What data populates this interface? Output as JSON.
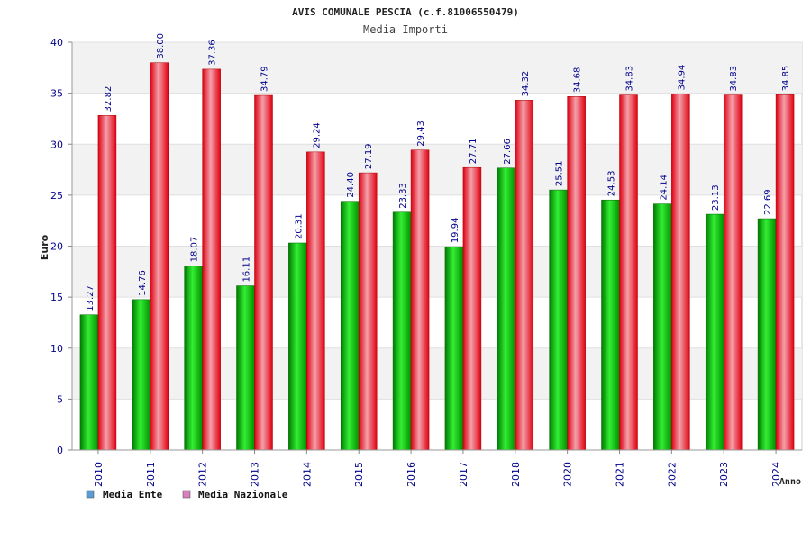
{
  "chart_data": {
    "type": "bar",
    "title": "AVIS COMUNALE PESCIA (c.f.81006550479)",
    "subtitle": "Media Importi",
    "xlabel": "Anno",
    "ylabel": "Euro",
    "ylim": [
      0,
      40
    ],
    "yticks": [
      "0",
      "5",
      "10",
      "15",
      "20",
      "25",
      "30",
      "35",
      "40"
    ],
    "categories": [
      "2010",
      "2011",
      "2012",
      "2013",
      "2014",
      "2015",
      "2016",
      "2017",
      "2018",
      "2020",
      "2021",
      "2022",
      "2023",
      "2024"
    ],
    "series": [
      {
        "name": "Media Ente",
        "color": "#00c000",
        "legend_color": "#5b9bd5",
        "values": [
          13.27,
          14.76,
          18.07,
          16.11,
          20.31,
          24.4,
          23.33,
          19.94,
          27.66,
          25.51,
          24.53,
          24.14,
          23.13,
          22.69
        ],
        "labels": [
          "13.27",
          "14.76",
          "18.07",
          "16.11",
          "20.31",
          "24.40",
          "23.33",
          "19.94",
          "27.66",
          "25.51",
          "24.53",
          "24.14",
          "23.13",
          "22.69"
        ]
      },
      {
        "name": "Media Nazionale",
        "color": "#ee1122",
        "legend_color": "#d77fbf",
        "values": [
          32.82,
          38.0,
          37.36,
          34.79,
          29.24,
          27.19,
          29.43,
          27.71,
          34.32,
          34.68,
          34.83,
          34.94,
          34.83,
          34.85
        ],
        "labels": [
          "32.82",
          "38.00",
          "37.36",
          "34.79",
          "29.24",
          "27.19",
          "29.43",
          "27.71",
          "34.32",
          "34.68",
          "34.83",
          "34.94",
          "34.83",
          "34.85"
        ]
      }
    ],
    "grid": true,
    "legend_position": "bottom-left"
  }
}
